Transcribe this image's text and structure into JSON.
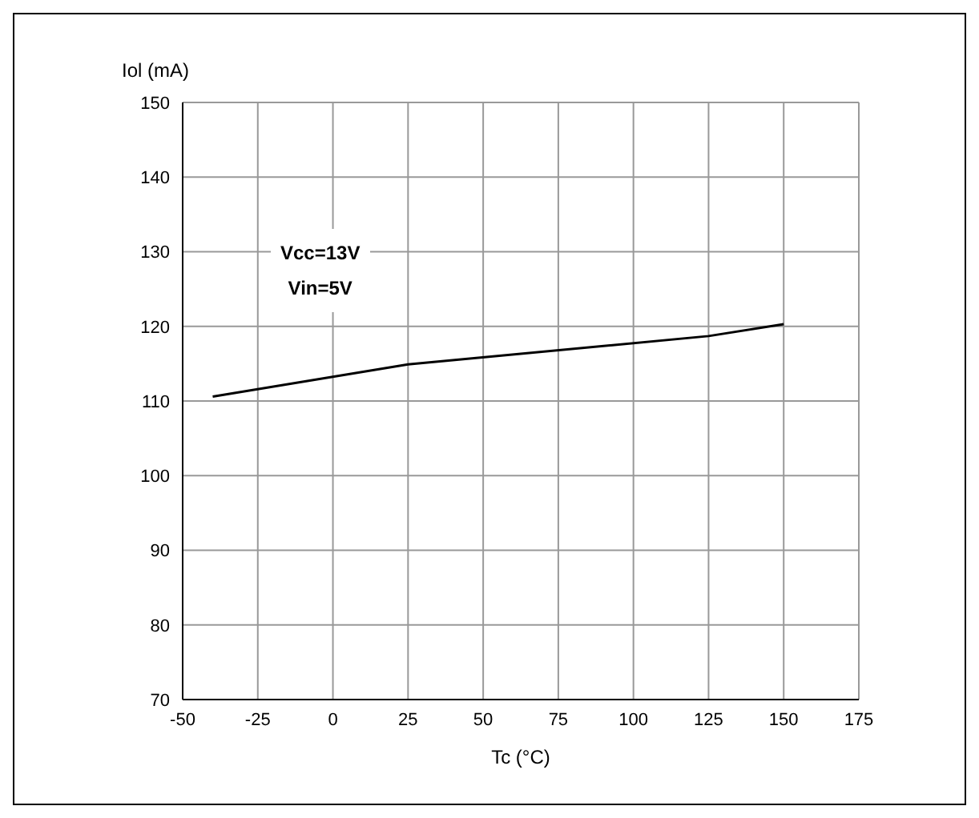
{
  "chart_data": {
    "type": "line",
    "xlabel": "Tc (°C)",
    "ylabel": "Iol (mA)",
    "annotations": [
      "Vcc=13V",
      "Vin=5V"
    ],
    "x": [
      -40,
      25,
      125,
      150
    ],
    "series": [
      {
        "color": "#000000",
        "values": [
          110.6,
          114.9,
          118.7,
          120.3
        ]
      }
    ],
    "xlim": [
      -50,
      175
    ],
    "xticks": [
      -50,
      -25,
      0,
      25,
      50,
      75,
      100,
      125,
      150,
      175
    ],
    "ylim": [
      70,
      150
    ],
    "yticks": [
      70,
      80,
      90,
      100,
      110,
      120,
      130,
      140,
      150
    ],
    "grid": true,
    "legend": false,
    "marker": "none",
    "line_style": "solid"
  }
}
